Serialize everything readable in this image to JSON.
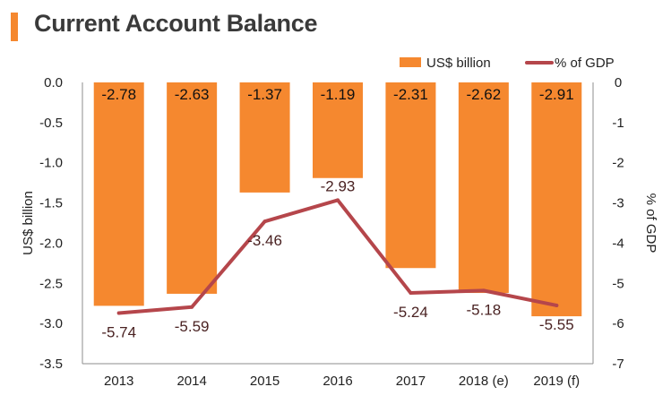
{
  "chart_data": {
    "type": "bar+line",
    "title": "Current Account Balance",
    "categories": [
      "2013",
      "2014",
      "2015",
      "2016",
      "2017",
      "2018 (e)",
      "2019 (f)"
    ],
    "series": [
      {
        "name": "US$ billion",
        "kind": "bar",
        "axis": "left",
        "values": [
          -2.78,
          -2.63,
          -1.37,
          -1.19,
          -2.31,
          -2.62,
          -2.91
        ],
        "labels": [
          "-2.78",
          "-2.63",
          "-1.37",
          "-1.19",
          "-2.31",
          "-2.62",
          "-2.91"
        ]
      },
      {
        "name": "% of GDP",
        "kind": "line",
        "axis": "right",
        "values": [
          -5.74,
          -5.59,
          -3.46,
          -2.93,
          -5.24,
          -5.18,
          -5.55
        ],
        "labels": [
          "-5.74",
          "-5.59",
          "-3.46",
          "-2.93",
          "-5.24",
          "-5.18",
          "-5.55"
        ]
      }
    ],
    "ylabel_left": "US$ billion",
    "ylabel_right": "% of GDP",
    "ylim_left": [
      -3.5,
      0
    ],
    "ylim_right": [
      -7,
      0
    ],
    "yticks_left": [
      "0.0",
      "-0.5",
      "-1.0",
      "-1.5",
      "-2.0",
      "-2.5",
      "-3.0",
      "-3.5"
    ],
    "yticks_right": [
      "0",
      "-1",
      "-2",
      "-3",
      "-4",
      "-5",
      "-6",
      "-7"
    ],
    "legend_position": "top-right",
    "colors": {
      "bar": "#f5882f",
      "line": "#b5464b",
      "accent": "#f5882f",
      "text": "#222222",
      "line_label": "#4a2222"
    }
  }
}
